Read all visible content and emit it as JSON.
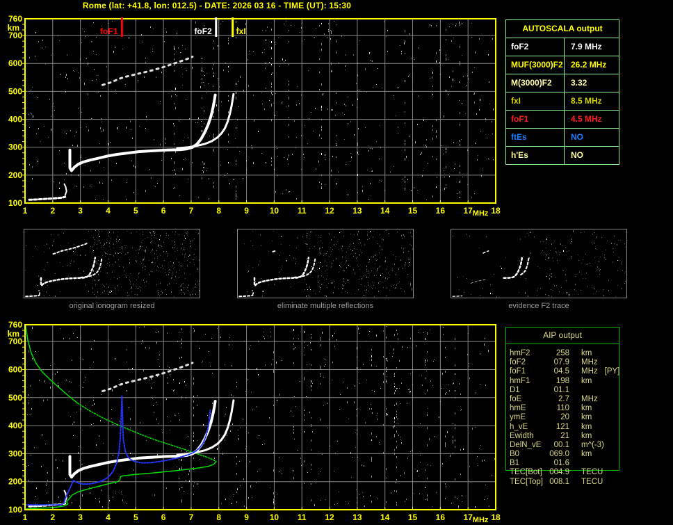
{
  "title": "Rome (lat: +41.8, lon: 012.5) - DATE: 2026 03 16 - TIME (UT): 15:30",
  "colors": {
    "axis": "#ffff00",
    "grid": "#878787",
    "noise_bright": "#ffffff",
    "trace_white": "#ffffff",
    "trace_blue": "#2233ff",
    "trace_green": "#00dd00",
    "autoscala_border": "#8df58d",
    "aip_border": "#00b400",
    "aip_text": "#d8d884",
    "thumb_border": "#888888",
    "caption": "#9c9c9c",
    "marker_foF1": "#ff0000",
    "marker_foF2": "#ffffff",
    "marker_fxI": "#ffff00"
  },
  "chart_data": {
    "type": "scatter",
    "xlabel": "MHz",
    "ylabel": "km",
    "xlim": [
      1,
      18
    ],
    "ylim": [
      100,
      760
    ],
    "x_ticks": [
      1,
      2,
      3,
      4,
      5,
      6,
      7,
      8,
      9,
      10,
      11,
      12,
      13,
      14,
      15,
      16,
      17,
      18
    ],
    "y_ticks": [
      100,
      200,
      300,
      400,
      500,
      600,
      700,
      760
    ],
    "grid": true,
    "plots": [
      {
        "name": "scaled_ionogram",
        "markers": [
          {
            "label": "foF1",
            "x": 4.5,
            "color": "#ff0000",
            "label_side": "left"
          },
          {
            "label": "foF2",
            "x": 7.9,
            "color": "#ffffff",
            "label_side": "left"
          },
          {
            "label": "fxI",
            "x": 8.5,
            "color": "#ffff00",
            "label_side": "right"
          }
        ],
        "series": [
          "e_trace",
          "e_hook",
          "f_trace_o",
          "f_trace_x",
          "second_hop"
        ],
        "noise_seed": 77
      },
      {
        "name": "aip_profile_ionogram",
        "markers": [],
        "series": [
          "profile_topside",
          "profile_mid",
          "profile_bottom",
          "e_trace",
          "e_hook",
          "f_trace_o",
          "f_trace_x",
          "second_hop",
          "restored_blue"
        ],
        "noise_seed": 1234
      }
    ],
    "series": {
      "e_trace": {
        "legend": "E-region echo trace",
        "color": "#ffffff",
        "style": "dashed",
        "width": 3,
        "points": [
          [
            1.15,
            112
          ],
          [
            1.45,
            113
          ],
          [
            1.75,
            115
          ],
          [
            2.05,
            117
          ],
          [
            2.3,
            119
          ],
          [
            2.45,
            122
          ]
        ]
      },
      "e_hook": {
        "legend": "E-region cusp",
        "color": "#ffffff",
        "style": "solid",
        "width": 2,
        "points": [
          [
            2.45,
            128
          ],
          [
            2.5,
            142
          ],
          [
            2.47,
            158
          ],
          [
            2.42,
            168
          ]
        ]
      },
      "f_trace_o": {
        "legend": "F trace ordinary",
        "color": "#ffffff",
        "style": "solid",
        "width": 4,
        "points": [
          [
            2.62,
            290
          ],
          [
            2.62,
            225
          ],
          [
            2.68,
            216
          ],
          [
            2.78,
            228
          ],
          [
            2.92,
            239
          ],
          [
            3.1,
            247
          ],
          [
            3.35,
            254
          ],
          [
            3.62,
            260
          ],
          [
            3.92,
            267
          ],
          [
            4.3,
            274
          ],
          [
            4.7,
            279
          ],
          [
            5.1,
            284
          ],
          [
            5.6,
            287
          ],
          [
            6.1,
            290
          ],
          [
            6.6,
            291
          ],
          [
            6.85,
            294
          ],
          [
            7.05,
            300
          ],
          [
            7.2,
            310
          ],
          [
            7.36,
            330
          ],
          [
            7.5,
            355
          ],
          [
            7.62,
            382
          ],
          [
            7.72,
            412
          ],
          [
            7.79,
            442
          ],
          [
            7.84,
            468
          ],
          [
            7.87,
            487
          ]
        ]
      },
      "f_trace_x": {
        "legend": "F trace extraordinary",
        "color": "#ffffff",
        "style": "solid",
        "width": 3,
        "points": [
          [
            6.5,
            296
          ],
          [
            6.9,
            300
          ],
          [
            7.2,
            305
          ],
          [
            7.5,
            312
          ],
          [
            7.75,
            322
          ],
          [
            7.95,
            335
          ],
          [
            8.1,
            350
          ],
          [
            8.22,
            368
          ],
          [
            8.32,
            392
          ],
          [
            8.4,
            420
          ],
          [
            8.46,
            448
          ],
          [
            8.5,
            472
          ],
          [
            8.53,
            490
          ]
        ]
      },
      "second_hop": {
        "legend": "second hop echo",
        "color": "#e0e0e0",
        "style": "sparse",
        "width": 3,
        "points": [
          [
            3.8,
            523
          ],
          [
            4.1,
            532
          ],
          [
            4.4,
            545
          ],
          [
            4.62,
            552
          ],
          [
            4.95,
            560
          ],
          [
            5.3,
            568
          ],
          [
            5.65,
            577
          ],
          [
            6.0,
            587
          ],
          [
            6.3,
            597
          ],
          [
            6.6,
            607
          ],
          [
            6.85,
            616
          ],
          [
            7.05,
            624
          ]
        ]
      },
      "restored_blue": {
        "legend": "restored trace",
        "color": "#2233ff",
        "style": "dotted",
        "width": 2,
        "points": [
          [
            1.0,
            117
          ],
          [
            1.3,
            117
          ],
          [
            1.6,
            117
          ],
          [
            1.9,
            117
          ],
          [
            2.15,
            117
          ],
          [
            2.3,
            118
          ],
          [
            2.4,
            122
          ],
          [
            2.47,
            144
          ],
          [
            2.75,
            204
          ],
          [
            2.9,
            196
          ],
          [
            3.1,
            191
          ],
          [
            3.35,
            192
          ],
          [
            3.6,
            197
          ],
          [
            3.85,
            206
          ],
          [
            4.05,
            220
          ],
          [
            4.2,
            240
          ],
          [
            4.32,
            270
          ],
          [
            4.4,
            310
          ],
          [
            4.45,
            370
          ],
          [
            4.5,
            505
          ],
          [
            4.55,
            350
          ],
          [
            4.62,
            308
          ],
          [
            4.72,
            288
          ],
          [
            4.85,
            277
          ],
          [
            5.0,
            271
          ],
          [
            5.25,
            267
          ],
          [
            5.55,
            268
          ],
          [
            5.85,
            272
          ],
          [
            6.15,
            277
          ],
          [
            6.45,
            283
          ],
          [
            6.7,
            290
          ],
          [
            6.95,
            298
          ],
          [
            7.15,
            308
          ],
          [
            7.3,
            320
          ],
          [
            7.42,
            336
          ],
          [
            7.52,
            358
          ],
          [
            7.6,
            385
          ],
          [
            7.65,
            415
          ],
          [
            7.69,
            455
          ]
        ]
      },
      "profile_topside": {
        "legend": "electron density profile topside",
        "color": "#00dd00",
        "style": "solid",
        "width": 1.5,
        "points": [
          [
            1.02,
            758
          ],
          [
            1.1,
            705
          ],
          [
            1.22,
            660
          ],
          [
            1.4,
            622
          ],
          [
            1.62,
            592
          ],
          [
            1.9,
            565
          ],
          [
            2.2,
            538
          ],
          [
            2.55,
            508
          ],
          [
            2.9,
            480
          ]
        ]
      },
      "profile_mid": {
        "legend": "electron density profile F-region",
        "color": "#00dd00",
        "style": "dotted",
        "width": 1.5,
        "points": [
          [
            2.9,
            480
          ],
          [
            3.3,
            455
          ],
          [
            3.8,
            428
          ],
          [
            4.3,
            405
          ],
          [
            4.8,
            384
          ],
          [
            5.3,
            364
          ],
          [
            5.8,
            346
          ],
          [
            6.3,
            330
          ],
          [
            6.8,
            314
          ],
          [
            7.2,
            300
          ],
          [
            7.55,
            288
          ],
          [
            7.78,
            279
          ],
          [
            7.9,
            272
          ]
        ]
      },
      "profile_bottom": {
        "legend": "electron density profile bottomside",
        "color": "#00dd00",
        "style": "solid",
        "width": 1.5,
        "points": [
          [
            7.9,
            272
          ],
          [
            7.82,
            262
          ],
          [
            7.6,
            254
          ],
          [
            7.2,
            248
          ],
          [
            6.7,
            242
          ],
          [
            6.1,
            236
          ],
          [
            5.5,
            230
          ],
          [
            5.0,
            226
          ],
          [
            4.55,
            221
          ],
          [
            4.45,
            218
          ],
          [
            4.42,
            206
          ],
          [
            4.35,
            200
          ],
          [
            4.0,
            192
          ],
          [
            3.6,
            182
          ],
          [
            3.2,
            172
          ],
          [
            2.9,
            163
          ],
          [
            2.7,
            152
          ],
          [
            2.6,
            140
          ],
          [
            2.5,
            128
          ],
          [
            2.55,
            120
          ],
          [
            2.4,
            113
          ],
          [
            2.2,
            110
          ],
          [
            1.9,
            107
          ],
          [
            1.5,
            105
          ],
          [
            1.05,
            103
          ]
        ]
      }
    }
  },
  "autoscala": {
    "header": "AUTOSCALA output",
    "rows": [
      {
        "param": "foF2",
        "value": "7.9 MHz",
        "color": "#ffffff"
      },
      {
        "param": "MUF(3000)F2",
        "value": "26.2 MHz",
        "color": "#ffff00"
      },
      {
        "param": "M(3000)F2",
        "value": "3.32",
        "color": "#ffffa8"
      },
      {
        "param": "fxI",
        "value": "8.5 MHz",
        "color": "#d4d400"
      },
      {
        "param": "foF1",
        "value": "4.5 MHz",
        "color": "#ff2020"
      },
      {
        "param": "ftEs",
        "value": "NO",
        "color": "#1e7fff"
      },
      {
        "param": "h'Es",
        "value": "NO",
        "color": "#ffff9c"
      }
    ]
  },
  "aip": {
    "header": "AIP output",
    "rows": [
      {
        "param": "hmF2",
        "value": "258",
        "unit": "km",
        "note": ""
      },
      {
        "param": "foF2",
        "value": "07.9",
        "unit": "MHz",
        "note": ""
      },
      {
        "param": "foF1",
        "value": "04.5",
        "unit": "MHz",
        "note": "[PY]"
      },
      {
        "param": "hmF1",
        "value": "198",
        "unit": "km",
        "note": ""
      },
      {
        "param": "D1",
        "value": "01.1",
        "unit": "",
        "note": ""
      },
      {
        "param": "foE",
        "value": "2.7",
        "unit": "MHz",
        "note": ""
      },
      {
        "param": "hmE",
        "value": "110",
        "unit": "km",
        "note": ""
      },
      {
        "param": "ymE",
        "value": "20",
        "unit": "km",
        "note": ""
      },
      {
        "param": "h_vE",
        "value": "121",
        "unit": "km",
        "note": ""
      },
      {
        "param": "Ewidth",
        "value": "21",
        "unit": "km",
        "note": ""
      },
      {
        "param": "DelN_vE",
        "value": "00.1",
        "unit": "m^(-3)",
        "note": ""
      },
      {
        "param": "B0",
        "value": "069.0",
        "unit": "km",
        "note": ""
      },
      {
        "param": "B1",
        "value": "01.6",
        "unit": "",
        "note": ""
      },
      {
        "param": "TEC[Bot]",
        "value": "004.9",
        "unit": "TECU",
        "note": ""
      },
      {
        "param": "TEC[Top]",
        "value": "008.1",
        "unit": "TECU",
        "note": ""
      }
    ]
  },
  "thumbnails": [
    {
      "label": "original ionogram resized"
    },
    {
      "label": "eliminate multiple reflections"
    },
    {
      "label": "evidence F2 trace"
    }
  ]
}
